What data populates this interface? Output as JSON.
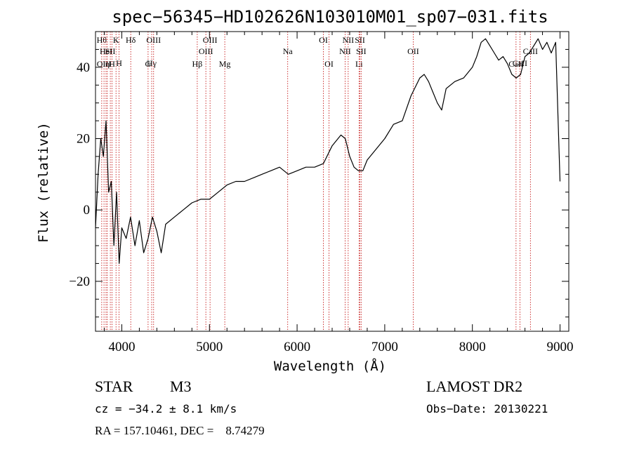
{
  "chart_data": {
    "type": "line",
    "title": "spec−56345−HD102626N103010M01_sp07−031.fits",
    "xlabel": "Wavelength (Å)",
    "ylabel": "Flux (relative)",
    "xlim": [
      3700,
      9100
    ],
    "ylim": [
      -34,
      50
    ],
    "x_ticks": [
      {
        "value": 4000,
        "label": "4000"
      },
      {
        "value": 5000,
        "label": "5000"
      },
      {
        "value": 6000,
        "label": "6000"
      },
      {
        "value": 7000,
        "label": "7000"
      },
      {
        "value": 8000,
        "label": "8000"
      },
      {
        "value": 9000,
        "label": "9000"
      }
    ],
    "y_ticks": [
      {
        "value": -20,
        "label": "−20"
      },
      {
        "value": 0,
        "label": "0"
      },
      {
        "value": 20,
        "label": "20"
      },
      {
        "value": 40,
        "label": "40"
      }
    ],
    "grid": false,
    "series": [
      {
        "color": "#000000",
        "x": [
          3700,
          3730,
          3760,
          3790,
          3820,
          3850,
          3880,
          3910,
          3940,
          3970,
          4000,
          4050,
          4100,
          4150,
          4200,
          4250,
          4300,
          4350,
          4400,
          4450,
          4500,
          4600,
          4700,
          4800,
          4900,
          5000,
          5100,
          5200,
          5300,
          5400,
          5500,
          5600,
          5700,
          5800,
          5900,
          6000,
          6100,
          6200,
          6300,
          6400,
          6500,
          6550,
          6600,
          6650,
          6700,
          6750,
          6800,
          6900,
          7000,
          7100,
          7200,
          7300,
          7400,
          7450,
          7500,
          7550,
          7600,
          7650,
          7700,
          7800,
          7900,
          8000,
          8050,
          8100,
          8150,
          8200,
          8250,
          8300,
          8350,
          8400,
          8450,
          8500,
          8550,
          8600,
          8650,
          8700,
          8750,
          8800,
          8850,
          8900,
          8950,
          9000
        ],
        "y": [
          -5,
          10,
          20,
          15,
          25,
          5,
          8,
          -10,
          5,
          -15,
          -5,
          -8,
          -2,
          -10,
          -3,
          -12,
          -8,
          -2,
          -6,
          -12,
          -4,
          -2,
          0,
          2,
          3,
          3,
          5,
          7,
          8,
          8,
          9,
          10,
          11,
          12,
          10,
          11,
          12,
          12,
          13,
          18,
          21,
          20,
          15,
          12,
          11,
          11,
          14,
          17,
          20,
          24,
          25,
          32,
          37,
          38,
          36,
          33,
          30,
          28,
          34,
          36,
          37,
          40,
          43,
          47,
          48,
          46,
          44,
          42,
          43,
          41,
          38,
          37,
          38,
          43,
          44,
          46,
          48,
          45,
          47,
          44,
          47,
          8
        ]
      }
    ],
    "markers": [
      {
        "x": 3771,
        "label": "Hθ",
        "row": 0
      },
      {
        "x": 3797,
        "label": "OIII",
        "row": 3
      },
      {
        "x": 3820,
        "label": "HeI",
        "row": 1
      },
      {
        "x": 3835,
        "label": "η",
        "row": 3
      },
      {
        "x": 3869,
        "label": "SII",
        "row": 1
      },
      {
        "x": 3889,
        "label": "H",
        "row": 3
      },
      {
        "x": 3934,
        "label": "K",
        "row": 0
      },
      {
        "x": 3969,
        "label": "H",
        "row": 2
      },
      {
        "x": 4102,
        "label": "Hδ",
        "row": 0
      },
      {
        "x": 4300,
        "label": "G",
        "row": 3
      },
      {
        "x": 4341,
        "label": "Hγ",
        "row": 2
      },
      {
        "x": 4363,
        "label": "OIII",
        "row": 0
      },
      {
        "x": 4861,
        "label": "Hβ",
        "row": 3
      },
      {
        "x": 4959,
        "label": "OIII",
        "row": 1
      },
      {
        "x": 5007,
        "label": "OIII",
        "row": 0
      },
      {
        "x": 5175,
        "label": "Mg",
        "row": 3
      },
      {
        "x": 5893,
        "label": "Na",
        "row": 1
      },
      {
        "x": 6300,
        "label": "OI",
        "row": 0
      },
      {
        "x": 6364,
        "label": "OI",
        "row": 3
      },
      {
        "x": 6548,
        "label": "NII",
        "row": 1
      },
      {
        "x": 6583,
        "label": "NII",
        "row": 0
      },
      {
        "x": 6707,
        "label": "Li",
        "row": 3
      },
      {
        "x": 6717,
        "label": "SII",
        "row": 0
      },
      {
        "x": 6731,
        "label": "SII",
        "row": 1
      },
      {
        "x": 7325,
        "label": "OII",
        "row": 1
      },
      {
        "x": 8498,
        "label": "CaII",
        "row": 3
      },
      {
        "x": 8542,
        "label": "CaII",
        "row": 2
      },
      {
        "x": 8662,
        "label": "CaII",
        "row": 1
      }
    ]
  },
  "info": {
    "object_class": "STAR",
    "subclass": "M3",
    "survey": "LAMOST DR2",
    "redshift_line": "cz = −34.2 ± 8.1 km/s",
    "obs_date_line": "Obs−Date: 20130221",
    "coords_line": "RA = 157.10461, DEC =    8.74279"
  }
}
